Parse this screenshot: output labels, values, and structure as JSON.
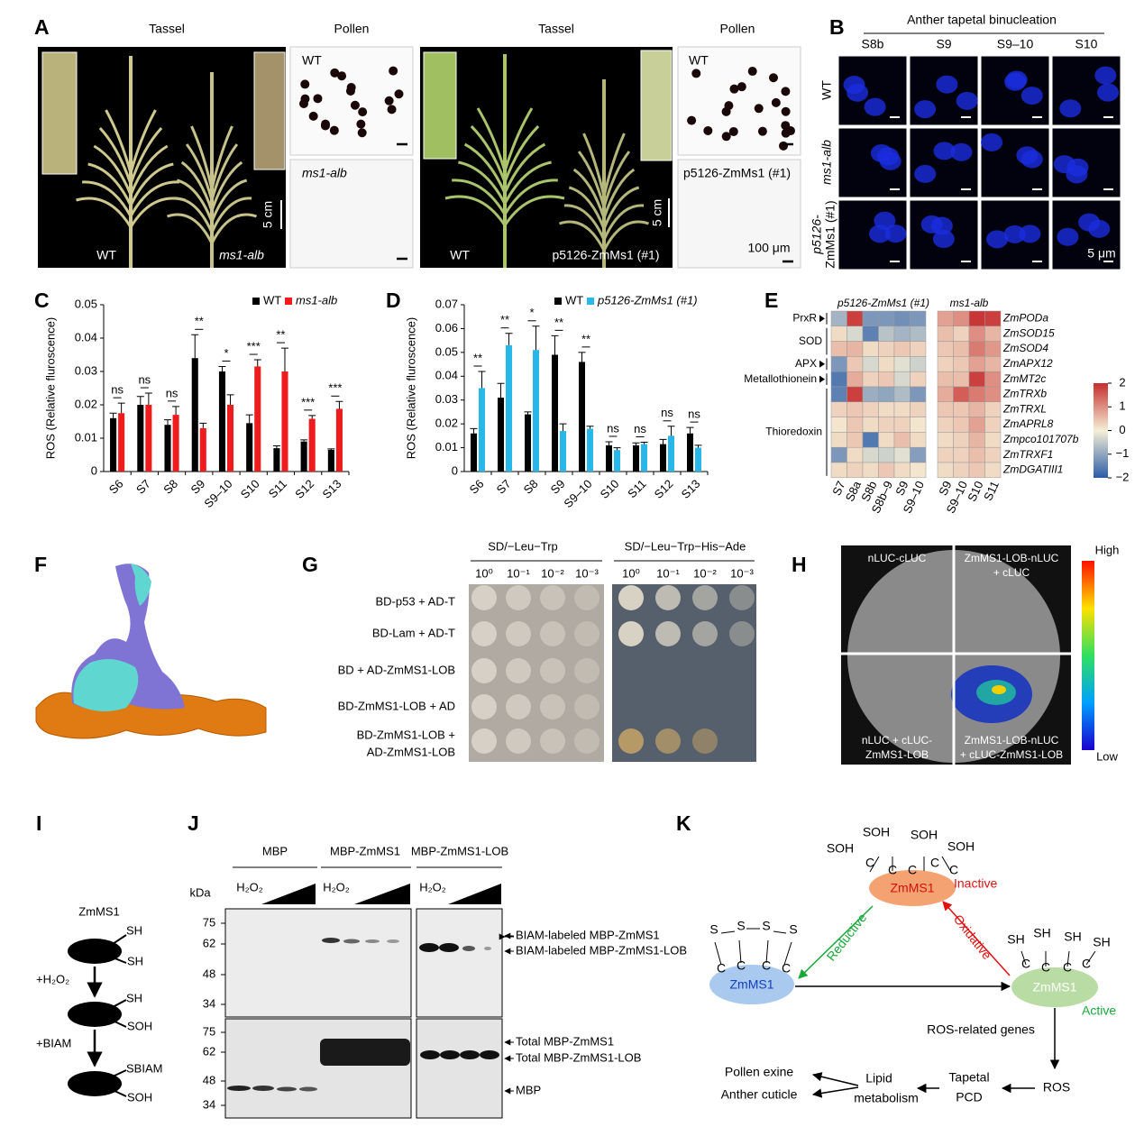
{
  "panel_letters": [
    "A",
    "B",
    "C",
    "D",
    "E",
    "F",
    "G",
    "H",
    "I",
    "J",
    "K"
  ],
  "panel_a": {
    "headers": [
      "Tassel",
      "Pollen",
      "Tassel",
      "Pollen"
    ],
    "tassel_labels": [
      "WT",
      "ms1-alb",
      "WT",
      "p5126-ZmMs1 (#1)"
    ],
    "pollen_labels": [
      "WT",
      "ms1-alb",
      "WT",
      "p5126-ZmMs1 (#1)"
    ],
    "scale_bars": [
      "5 cm",
      "5 cm",
      "100 μm"
    ]
  },
  "panel_b": {
    "title": "Anther tapetal binucleation",
    "columns": [
      "S8b",
      "S9",
      "S9–10",
      "S10"
    ],
    "rows": [
      [
        "WT"
      ],
      [
        "ms1-alb"
      ],
      [
        "p5126-",
        "ZmMs1 (#1)"
      ]
    ],
    "scale_bar": "5 μm"
  },
  "chart_data": [
    {
      "type": "bar",
      "ylabel": "ROS (Relative fluroscence)",
      "categories": [
        "S6",
        "S7",
        "S8",
        "S9",
        "S9–10",
        "S10",
        "S11",
        "S12",
        "S13"
      ],
      "series": [
        {
          "name": "WT",
          "color": "#000000",
          "values": [
            0.016,
            0.02,
            0.014,
            0.034,
            0.03,
            0.0145,
            0.007,
            0.009,
            0.0065
          ],
          "errors": [
            0.0015,
            0.0025,
            0.0015,
            0.007,
            0.0015,
            0.0025,
            0.0007,
            0.0005,
            0.0003
          ]
        },
        {
          "name": "ms1-alb",
          "color": "#ee1c1c",
          "values": [
            0.0175,
            0.02,
            0.017,
            0.013,
            0.02,
            0.0315,
            0.03,
            0.0158,
            0.0188
          ],
          "errors": [
            0.003,
            0.0035,
            0.0025,
            0.0015,
            0.003,
            0.002,
            0.007,
            0.001,
            0.0022
          ]
        }
      ],
      "annotations": [
        "ns",
        "ns",
        "ns",
        "**",
        "*",
        "***",
        "**",
        "***",
        "***"
      ],
      "ylim": [
        0,
        0.05
      ],
      "yticks": [
        0,
        0.01,
        0.02,
        0.03,
        0.04,
        0.05
      ],
      "legend": "top-right"
    },
    {
      "type": "bar",
      "ylabel": "ROS (Relative fluroscence)",
      "categories": [
        "S6",
        "S7",
        "S8",
        "S9",
        "S9–10",
        "S10",
        "S11",
        "S12",
        "S13"
      ],
      "series": [
        {
          "name": "WT",
          "color": "#000000",
          "values": [
            0.016,
            0.031,
            0.024,
            0.049,
            0.046,
            0.011,
            0.011,
            0.0115,
            0.016
          ],
          "errors": [
            0.002,
            0.006,
            0.001,
            0.008,
            0.004,
            0.0015,
            0.001,
            0.002,
            0.0025
          ]
        },
        {
          "name": "p5126-ZmMs1 (#1)",
          "color": "#29b6e8",
          "values": [
            0.035,
            0.053,
            0.051,
            0.017,
            0.018,
            0.009,
            0.0115,
            0.015,
            0.01
          ],
          "errors": [
            0.007,
            0.005,
            0.01,
            0.003,
            0.001,
            0.001,
            0.0008,
            0.004,
            0.001
          ]
        }
      ],
      "annotations": [
        "**",
        "**",
        "*",
        "**",
        "**",
        "ns",
        "ns",
        "ns",
        "ns"
      ],
      "ylim": [
        0,
        0.07
      ],
      "yticks": [
        0,
        0.01,
        0.02,
        0.03,
        0.04,
        0.05,
        0.06,
        0.07
      ],
      "legend": "top-right"
    },
    {
      "type": "heatmap",
      "rows": [
        "ZmPODa",
        "ZmSOD15",
        "ZmSOD4",
        "ZmAPX12",
        "ZmMT2c",
        "ZmTRXb",
        "ZmTRXL",
        "ZmAPRL8",
        "Zmpco101707b",
        "ZmTRXF1",
        "ZmDGATIII1"
      ],
      "row_groups": [
        "PrxR",
        "SOD",
        "APX",
        "Metallothionein",
        "Thioredoxin"
      ],
      "panels": [
        {
          "title": "p5126-ZmMs1 (#1)",
          "columns": [
            "S7",
            "S8a",
            "S8b",
            "S8b–9",
            "S9",
            "S9–10"
          ],
          "values": [
            [
              -0.8,
              1.8,
              -1.2,
              -1.2,
              -1.3,
              -1.2
            ],
            [
              0.2,
              -0.3,
              -1.5,
              -0.6,
              -0.8,
              -0.7
            ],
            [
              0.5,
              0.6,
              0.2,
              0.3,
              0.4,
              0.3
            ],
            [
              -1.2,
              0.4,
              -0.3,
              0.2,
              -0.2,
              -0.4
            ],
            [
              -1.6,
              0.7,
              0.3,
              0.4,
              -0.3,
              0.3
            ],
            [
              -1.5,
              1.8,
              -0.9,
              -1,
              -0.7,
              -1.2
            ],
            [
              0.3,
              0.4,
              0.3,
              0.2,
              0.2,
              0.3
            ],
            [
              0.1,
              0.4,
              0.2,
              0.3,
              0.3,
              0.1
            ],
            [
              0.2,
              0.4,
              -1.6,
              0.2,
              0.5,
              0.2
            ],
            [
              -1.2,
              0.2,
              -0.3,
              -0.4,
              -0.2,
              -1.1
            ],
            [
              0.2,
              0.3,
              0.2,
              0.4,
              0.2,
              0.1
            ]
          ]
        },
        {
          "title": "ms1-alb",
          "columns": [
            "S9",
            "S9–10",
            "S10",
            "S11"
          ],
          "values": [
            [
              0.8,
              1,
              1.9,
              1.8
            ],
            [
              0.5,
              0.3,
              1,
              0.6
            ],
            [
              0.4,
              0.5,
              1.2,
              0.9
            ],
            [
              0.3,
              0.4,
              0.8,
              0.6
            ],
            [
              0.5,
              0.5,
              1.8,
              1
            ],
            [
              0.7,
              1.5,
              1.2,
              1
            ],
            [
              0.4,
              0.4,
              0.6,
              0.3
            ],
            [
              0.3,
              0.4,
              0.8,
              0.3
            ],
            [
              0.2,
              0.3,
              0.6,
              0.2
            ],
            [
              0.3,
              0.3,
              0.5,
              0.3
            ],
            [
              0.2,
              0.3,
              0.4,
              0.2
            ]
          ]
        }
      ],
      "clim": [
        -2,
        2
      ],
      "cticks": [
        {
          "value": -2,
          "label": "−2"
        },
        {
          "value": -1,
          "label": "−1"
        },
        0,
        1,
        2
      ],
      "colors": [
        "#2b5ca8",
        "#f5efd6",
        "#c62d2d"
      ]
    }
  ],
  "panel_g": {
    "media": [
      "SD/−Leu−Trp",
      "SD/−Leu−Trp−His−Ade"
    ],
    "dilutions": [
      "10⁰",
      "10⁻¹",
      "10⁻²",
      "10⁻³"
    ],
    "rows": [
      [
        "BD-p53 + AD-T"
      ],
      [
        "BD-Lam + AD-T"
      ],
      [
        "BD + AD-ZmMS1-LOB"
      ],
      [
        "BD-ZmMS1-LOB + AD"
      ],
      [
        "BD-ZmMS1-LOB +",
        "AD-ZmMS1-LOB"
      ]
    ]
  },
  "panel_h": {
    "quadrants": [
      [
        "nLUC-cLUC"
      ],
      [
        "ZmMS1-LOB-nLUC",
        "+ cLUC"
      ],
      [
        "nLUC + cLUC-",
        "ZmMS1-LOB"
      ],
      [
        "ZmMS1-LOB-nLUC",
        "+ cLUC-ZmMS1-LOB"
      ]
    ],
    "scale": [
      "High",
      "Low"
    ]
  },
  "panel_i": {
    "protein": "ZmMS1",
    "states": [
      [
        "SH",
        "SH"
      ],
      [
        "SH",
        "SOH"
      ],
      [
        "SBIAM",
        "SOH"
      ]
    ],
    "steps": [
      "+H₂O₂",
      "+BIAM"
    ]
  },
  "panel_j": {
    "groups": [
      "MBP",
      "MBP-ZmMS1",
      "MBP-ZmMS1-LOB"
    ],
    "treatment": "H₂O₂",
    "unit": "kDa",
    "markers": [
      75,
      62,
      48,
      34
    ],
    "top_labels": [
      "BIAM-labeled MBP-ZmMS1",
      "BIAM-labeled MBP-ZmMS1-LOB"
    ],
    "bottom_labels": [
      "Total MBP-ZmMS1",
      "Total MBP-ZmMS1-LOB",
      "MBP"
    ]
  },
  "panel_k": {
    "protein": "ZmMS1",
    "inactive": "Inactive",
    "active": "Active",
    "reductive": "Reductive",
    "oxidative": "Oxidative",
    "soh": "SOH",
    "sh": "SH",
    "c": "C",
    "s": "S",
    "ros_genes": "ROS-related genes",
    "ros": "ROS",
    "tapetal_pcd": [
      "Tapetal",
      "PCD"
    ],
    "lipid": [
      "Lipid",
      "metabolism"
    ],
    "outputs": [
      "Pollen exine",
      "Anther cuticle"
    ]
  }
}
